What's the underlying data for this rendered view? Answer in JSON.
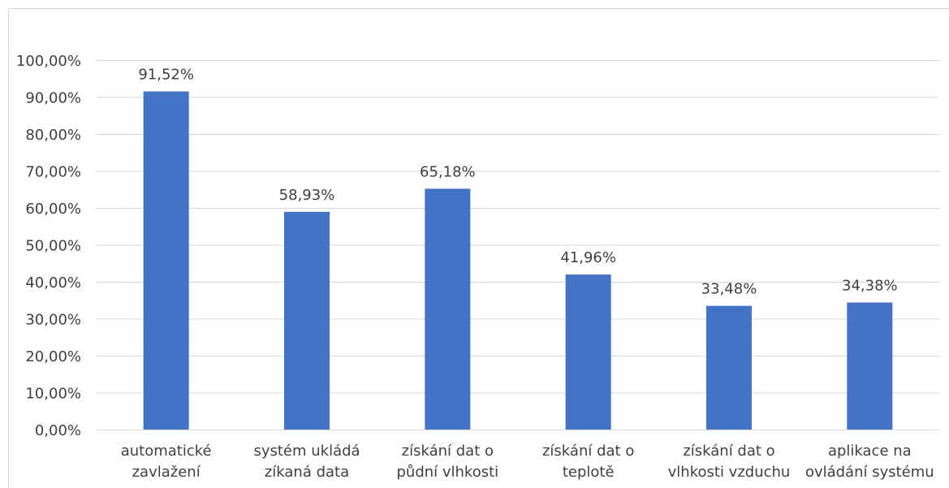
{
  "chart_data": {
    "type": "bar",
    "categories": [
      [
        "automatické",
        "zavlažení"
      ],
      [
        "systém ukládá",
        "zíkaná data"
      ],
      [
        "získání dat o",
        "půdní vlhkosti"
      ],
      [
        "získání dat o",
        "teplotě"
      ],
      [
        "získání dat o",
        "vlhkosti vzduchu"
      ],
      [
        "aplikace na",
        "ovládání systému"
      ]
    ],
    "values": [
      91.52,
      58.93,
      65.18,
      41.96,
      33.48,
      34.38
    ],
    "data_labels": [
      "91,52%",
      "58,93%",
      "65,18%",
      "41,96%",
      "33,48%",
      "34,38%"
    ],
    "y_ticks": [
      0,
      10,
      20,
      30,
      40,
      50,
      60,
      70,
      80,
      90,
      100
    ],
    "y_tick_labels": [
      "0,00%",
      "10,00%",
      "20,00%",
      "30,00%",
      "40,00%",
      "50,00%",
      "60,00%",
      "70,00%",
      "80,00%",
      "90,00%",
      "100,00%"
    ],
    "ylim": [
      0,
      100
    ],
    "title": "",
    "xlabel": "",
    "ylabel": "",
    "grid": true,
    "legend": "none",
    "bar_color": "#4472c4",
    "grid_color": "#d9d9d9",
    "text_color": "#404040"
  }
}
